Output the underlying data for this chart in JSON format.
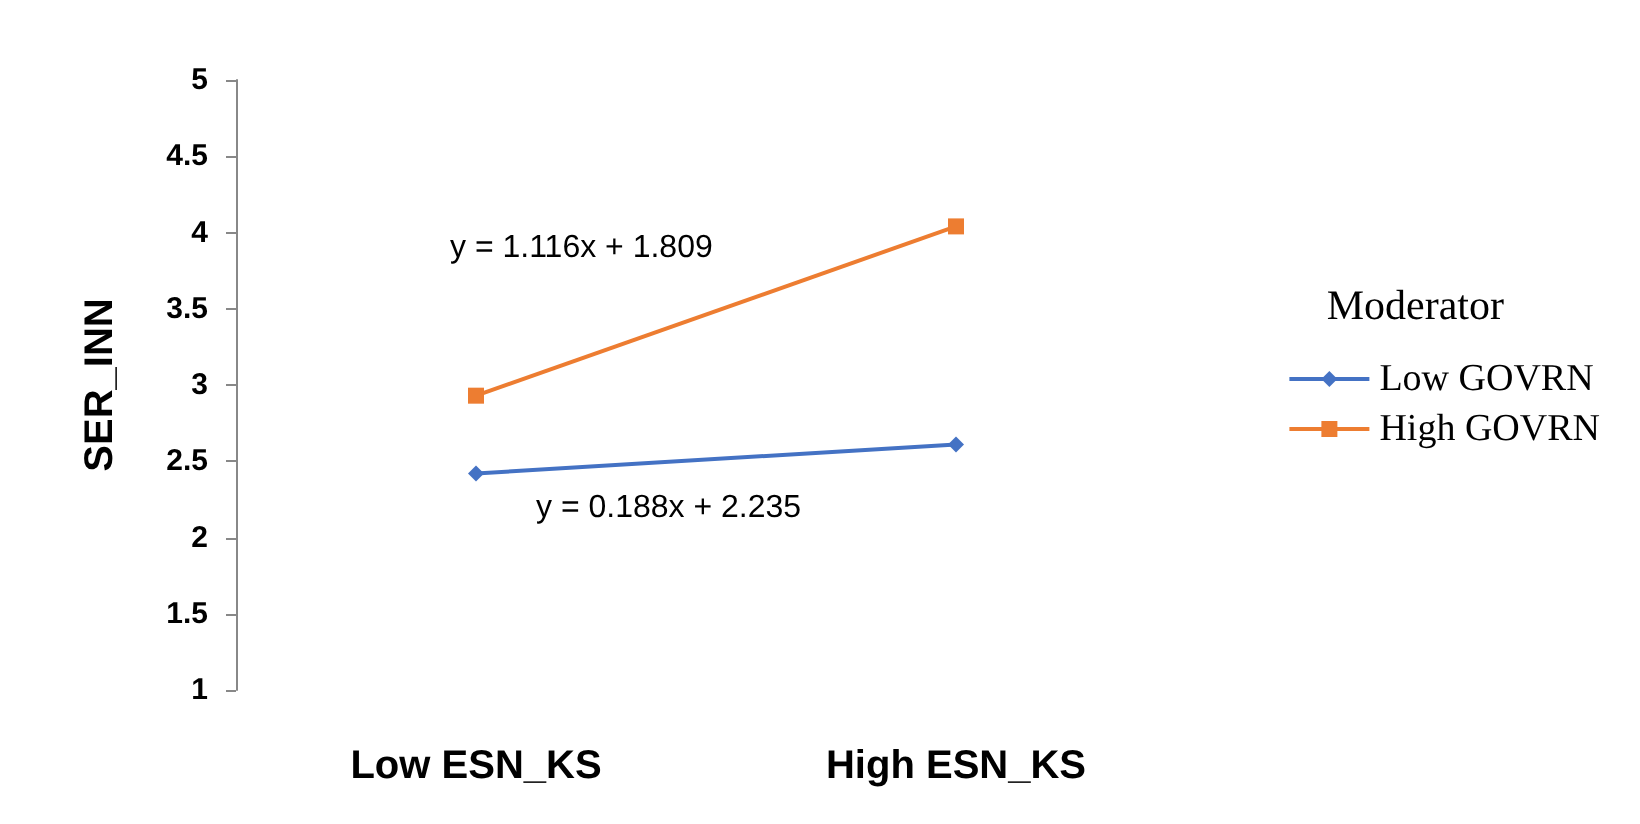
{
  "chart_data": {
    "type": "line",
    "ylabel": "SER_INN",
    "legend_title": "Moderator",
    "categories": [
      "Low ESN_KS",
      "High ESN_KS"
    ],
    "series": [
      {
        "name": "Low GOVRN",
        "color": "#4472c4",
        "values": [
          2.42,
          2.61
        ],
        "marker": "diamond"
      },
      {
        "name": "High GOVRN",
        "color": "#ed7d31",
        "values": [
          2.93,
          4.04
        ],
        "marker": "square"
      }
    ],
    "ylim": [
      1,
      5
    ],
    "yticks": [
      1,
      1.5,
      2,
      2.5,
      3,
      3.5,
      4,
      4.5,
      5
    ],
    "grid": false,
    "legend": "right",
    "annotations": [
      "y = 1.116x + 1.809",
      "y = 0.188x + 2.235"
    ]
  }
}
